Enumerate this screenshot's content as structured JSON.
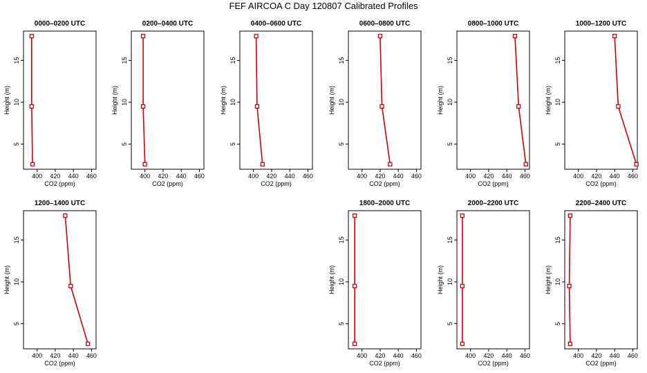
{
  "figure_title": "FEF AIRCOA C  Day 120807  Calibrated Profiles",
  "line_color": "#cc0000",
  "chart_data": [
    {
      "type": "line",
      "title": "0000–0200 UTC",
      "xlabel": "CO2 (ppm)",
      "ylabel": "Height (m)",
      "xlim": [
        385,
        465
      ],
      "ylim": [
        2,
        18.5
      ],
      "xticks": [
        400,
        420,
        440,
        460
      ],
      "yticks": [
        5,
        10,
        15
      ],
      "series": [
        {
          "x": [
            395,
            394,
            394
          ],
          "y": [
            2.6,
            9.5,
            17.9
          ]
        }
      ]
    },
    {
      "type": "line",
      "title": "0200–0400 UTC",
      "xlabel": "CO2 (ppm)",
      "ylabel": "Height (m)",
      "xlim": [
        385,
        465
      ],
      "ylim": [
        2,
        18.5
      ],
      "xticks": [
        400,
        420,
        440,
        460
      ],
      "yticks": [
        5,
        10,
        15
      ],
      "series": [
        {
          "x": [
            400,
            398,
            398
          ],
          "y": [
            2.6,
            9.5,
            17.9
          ]
        }
      ]
    },
    {
      "type": "line",
      "title": "0400–0600 UTC",
      "xlabel": "CO2 (ppm)",
      "ylabel": "Height (m)",
      "xlim": [
        385,
        465
      ],
      "ylim": [
        2,
        18.5
      ],
      "xticks": [
        400,
        420,
        440,
        460
      ],
      "yticks": [
        5,
        10,
        15
      ],
      "series": [
        {
          "x": [
            410,
            404,
            403
          ],
          "y": [
            2.6,
            9.5,
            17.9
          ]
        }
      ]
    },
    {
      "type": "line",
      "title": "0600–0800 UTC",
      "xlabel": "CO2 (ppm)",
      "ylabel": "Height (m)",
      "xlim": [
        385,
        465
      ],
      "ylim": [
        2,
        18.5
      ],
      "xticks": [
        400,
        420,
        440,
        460
      ],
      "yticks": [
        5,
        10,
        15
      ],
      "series": [
        {
          "x": [
            431,
            422,
            420
          ],
          "y": [
            2.6,
            9.5,
            17.9
          ]
        }
      ]
    },
    {
      "type": "line",
      "title": "0800–1000 UTC",
      "xlabel": "CO2 (ppm)",
      "ylabel": "Height (m)",
      "xlim": [
        385,
        465
      ],
      "ylim": [
        2,
        18.5
      ],
      "xticks": [
        400,
        420,
        440,
        460
      ],
      "yticks": [
        5,
        10,
        15
      ],
      "series": [
        {
          "x": [
            461,
            453,
            449
          ],
          "y": [
            2.6,
            9.5,
            17.9
          ]
        }
      ]
    },
    {
      "type": "line",
      "title": "1000–1200 UTC",
      "xlabel": "CO2 (ppm)",
      "ylabel": "Height (m)",
      "xlim": [
        385,
        465
      ],
      "ylim": [
        2,
        18.5
      ],
      "xticks": [
        400,
        420,
        440,
        460
      ],
      "yticks": [
        5,
        10,
        15
      ],
      "series": [
        {
          "x": [
            464,
            444,
            440
          ],
          "y": [
            2.6,
            9.5,
            17.9
          ]
        }
      ]
    },
    {
      "type": "line",
      "title": "1200–1400 UTC",
      "xlabel": "CO2 (ppm)",
      "ylabel": "Height (m)",
      "xlim": [
        385,
        465
      ],
      "ylim": [
        2,
        18.5
      ],
      "xticks": [
        400,
        420,
        440,
        460
      ],
      "yticks": [
        5,
        10,
        15
      ],
      "series": [
        {
          "x": [
            456,
            437,
            431
          ],
          "y": [
            2.6,
            9.5,
            17.9
          ]
        }
      ]
    },
    null,
    null,
    {
      "type": "line",
      "title": "1800–2000 UTC",
      "xlabel": "CO2 (ppm)",
      "ylabel": "Height (m)",
      "xlim": [
        385,
        465
      ],
      "ylim": [
        2,
        18.5
      ],
      "xticks": [
        400,
        420,
        440,
        460
      ],
      "yticks": [
        5,
        10,
        15
      ],
      "series": [
        {
          "x": [
            392,
            392,
            392
          ],
          "y": [
            2.6,
            9.5,
            17.9
          ]
        }
      ]
    },
    {
      "type": "line",
      "title": "2000–2200 UTC",
      "xlabel": "CO2 (ppm)",
      "ylabel": "Height (m)",
      "xlim": [
        385,
        465
      ],
      "ylim": [
        2,
        18.5
      ],
      "xticks": [
        400,
        420,
        440,
        460
      ],
      "yticks": [
        5,
        10,
        15
      ],
      "series": [
        {
          "x": [
            391,
            391,
            391
          ],
          "y": [
            2.6,
            9.5,
            17.9
          ]
        }
      ]
    },
    {
      "type": "line",
      "title": "2200–2400 UTC",
      "xlabel": "CO2 (ppm)",
      "ylabel": "Height (m)",
      "xlim": [
        385,
        465
      ],
      "ylim": [
        2,
        18.5
      ],
      "xticks": [
        400,
        420,
        440,
        460
      ],
      "yticks": [
        5,
        10,
        15
      ],
      "series": [
        {
          "x": [
            391,
            390,
            391
          ],
          "y": [
            2.6,
            9.5,
            17.9
          ]
        }
      ]
    }
  ]
}
